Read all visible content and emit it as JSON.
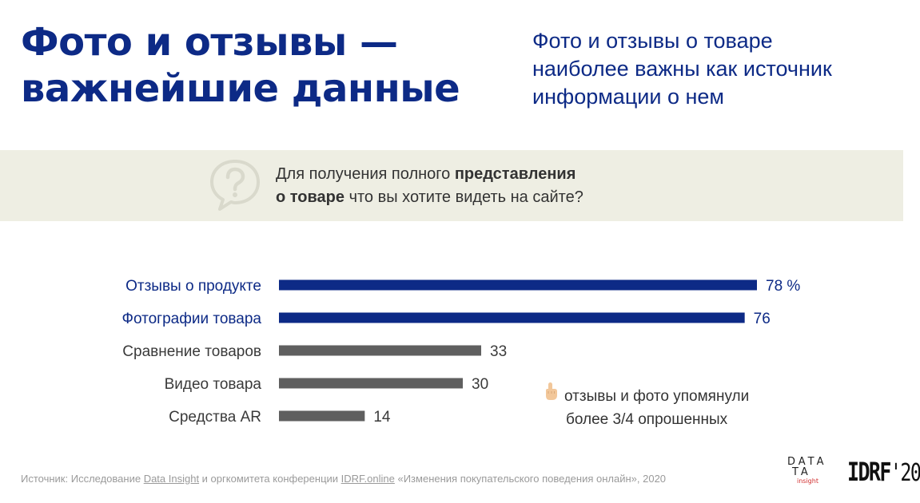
{
  "header": {
    "title_line1": "Фото и отзывы —",
    "title_line2": "важнейшие данные",
    "subtitle_line1": "Фото и отзывы о товаре",
    "subtitle_line2": "наиболее важны как источник",
    "subtitle_line3": "информации о нем"
  },
  "question": {
    "icon": "question-bubble-icon",
    "part1": "Для получения полного ",
    "bold1": "представления",
    "bold2": "о товаре",
    "part2": " что вы хотите видеть на сайте?"
  },
  "chart_data": {
    "type": "bar",
    "orientation": "horizontal",
    "categories": [
      "Отзывы о продукте",
      "Фотографии товара",
      "Сравнение товаров",
      "Видео товара",
      "Средства AR"
    ],
    "values": [
      78,
      76,
      33,
      30,
      14
    ],
    "value_labels": [
      "78 %",
      "76",
      "33",
      "30",
      "14"
    ],
    "highlighted": [
      true,
      true,
      false,
      false,
      false
    ],
    "colors": {
      "highlight": "#0d2a86",
      "normal": "#5f5f5f",
      "label_highlight": "#0d2a86",
      "label_normal": "#3a3a3a"
    },
    "xlim": [
      0,
      78
    ],
    "grid": false
  },
  "note": {
    "icon": "pointing-finger-icon",
    "line1": "отзывы и фото упомянули",
    "line2": "более 3/4 опрошенных"
  },
  "source": {
    "prefix": "Источник: Исследование ",
    "link1": "Data Insight",
    "middle": " и оргкомитета конференции ",
    "link2": "IDRF.online",
    "suffix": " «Изменения покупательского поведения онлайн», 2020"
  },
  "logos": {
    "di_line1": "DATA",
    "di_line2": "TA",
    "di_line3": "insight",
    "idrf_text": "IDRF",
    "idrf_year": "'20"
  }
}
